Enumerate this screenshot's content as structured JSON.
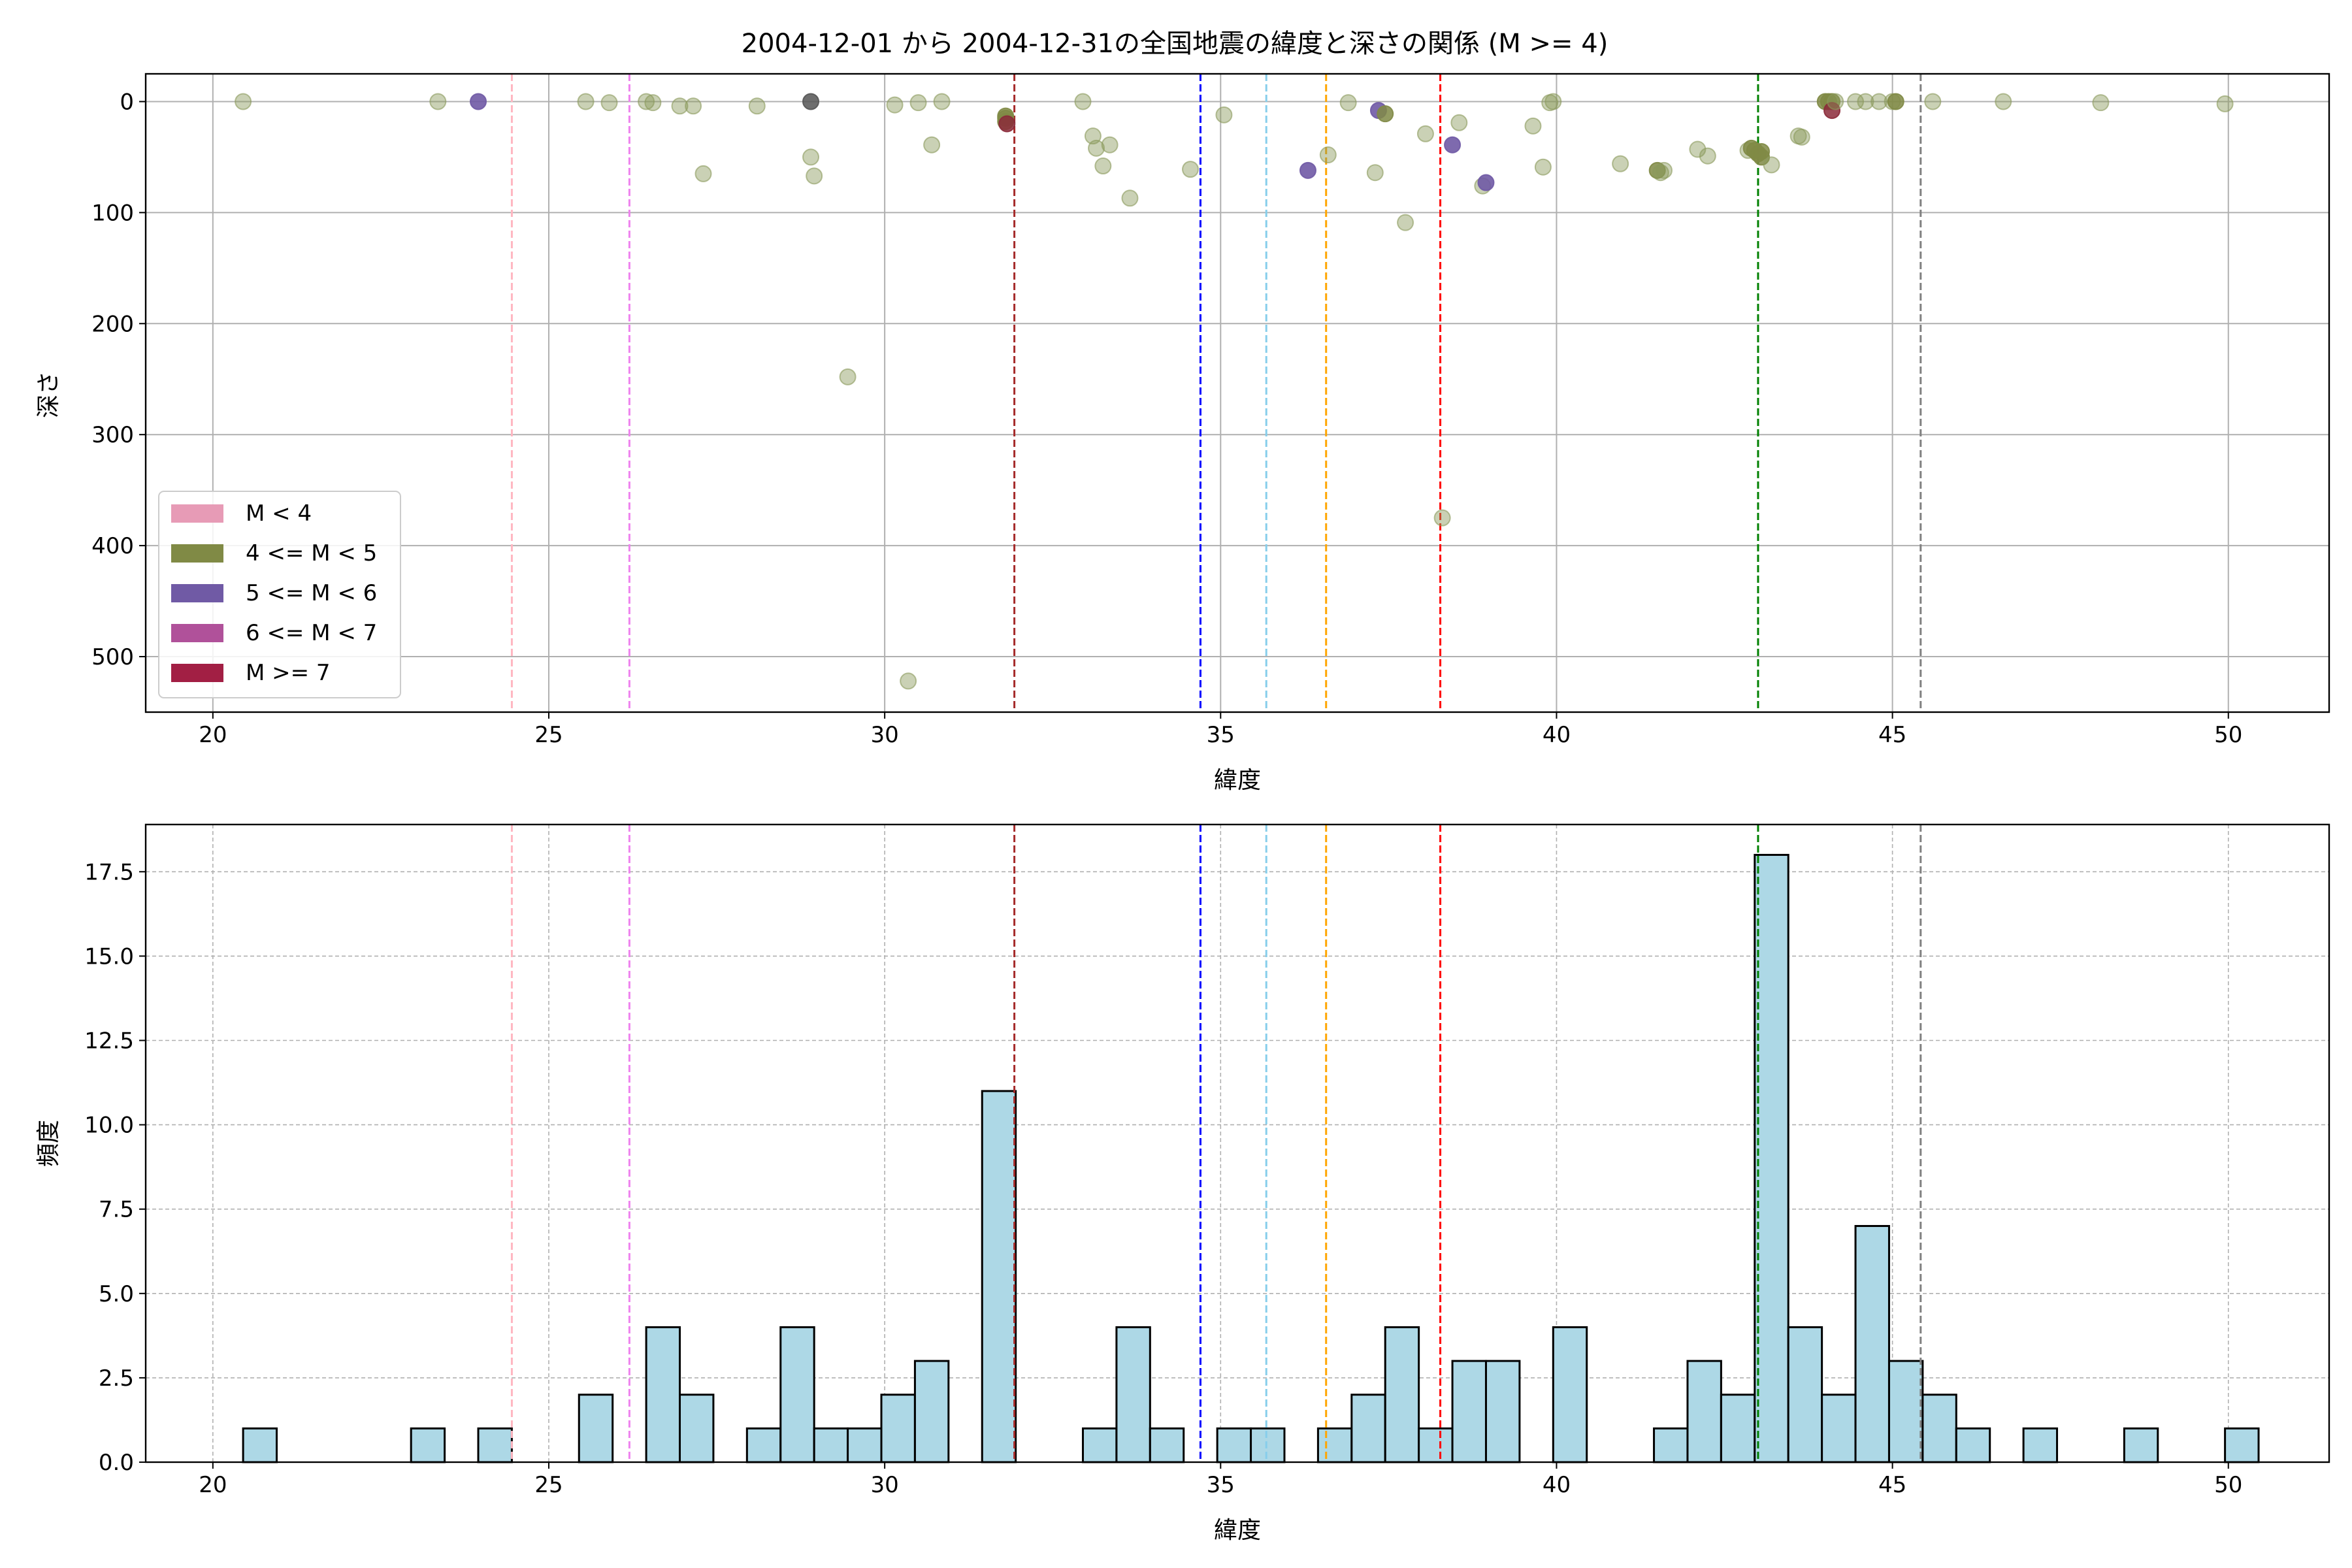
{
  "title": "2004-12-01 から 2004-12-31の全国地震の緯度と深さの関係 (M >= 4)",
  "colors": {
    "scatter_light": "#8a9a5b",
    "mag_4_5": "#808a45",
    "mag_5_6": "#705aa5",
    "mag_7": "#8b2a3a",
    "dark": "#555555",
    "hist_fill": "#add8e6",
    "grid": "#b0b0b0"
  },
  "chart_data": [
    {
      "type": "scatter",
      "xlabel": "緯度",
      "ylabel": "深さ",
      "xlim": [
        19,
        51.5
      ],
      "ylim": [
        550,
        -25
      ],
      "y_inverted": true,
      "xticks": [
        20,
        25,
        30,
        35,
        40,
        45,
        50
      ],
      "yticks": [
        0,
        100,
        200,
        300,
        400,
        500
      ],
      "grid": "solid",
      "legend_position": "lower-left",
      "legend": [
        {
          "label": "M < 4",
          "color": "#e79bb6"
        },
        {
          "label": "4 <= M < 5",
          "color": "#808a45"
        },
        {
          "label": "5 <= M < 6",
          "color": "#705aa5"
        },
        {
          "label": "6 <= M < 7",
          "color": "#b0519a"
        },
        {
          "label": "M >= 7",
          "color": "#a21f44"
        }
      ],
      "vlines": [
        {
          "x": 24.45,
          "color": "#ffb6c1"
        },
        {
          "x": 26.2,
          "color": "#ee82ee"
        },
        {
          "x": 31.93,
          "color": "#a52a2a"
        },
        {
          "x": 34.7,
          "color": "#0000ff"
        },
        {
          "x": 35.68,
          "color": "#87ceeb"
        },
        {
          "x": 36.57,
          "color": "#ffa500"
        },
        {
          "x": 38.27,
          "color": "#ff0000"
        },
        {
          "x": 43.0,
          "color": "#008000"
        },
        {
          "x": 45.42,
          "color": "#808080"
        }
      ],
      "points": [
        {
          "x": 20.45,
          "y": 0,
          "g": "light"
        },
        {
          "x": 23.35,
          "y": 0,
          "g": "light"
        },
        {
          "x": 23.95,
          "y": 0,
          "g": "m56"
        },
        {
          "x": 25.55,
          "y": 0,
          "g": "light"
        },
        {
          "x": 25.9,
          "y": 1,
          "g": "light"
        },
        {
          "x": 26.45,
          "y": 0,
          "g": "light"
        },
        {
          "x": 26.55,
          "y": 1,
          "g": "light"
        },
        {
          "x": 26.95,
          "y": 4,
          "g": "light"
        },
        {
          "x": 27.15,
          "y": 4,
          "g": "light"
        },
        {
          "x": 27.3,
          "y": 65,
          "g": "light"
        },
        {
          "x": 28.1,
          "y": 4,
          "g": "light"
        },
        {
          "x": 28.9,
          "y": 0,
          "g": "dark"
        },
        {
          "x": 28.9,
          "y": 50,
          "g": "light"
        },
        {
          "x": 28.95,
          "y": 67,
          "g": "light"
        },
        {
          "x": 29.45,
          "y": 248,
          "g": "light"
        },
        {
          "x": 30.15,
          "y": 3,
          "g": "light"
        },
        {
          "x": 30.35,
          "y": 522,
          "g": "light"
        },
        {
          "x": 30.5,
          "y": 1,
          "g": "light"
        },
        {
          "x": 30.7,
          "y": 39,
          "g": "light"
        },
        {
          "x": 30.85,
          "y": 0,
          "g": "light"
        },
        {
          "x": 31.8,
          "y": 13,
          "g": "m45"
        },
        {
          "x": 31.8,
          "y": 15,
          "g": "m45"
        },
        {
          "x": 31.8,
          "y": 18,
          "g": "m45"
        },
        {
          "x": 31.82,
          "y": 20,
          "g": "m7"
        },
        {
          "x": 32.95,
          "y": 0,
          "g": "light"
        },
        {
          "x": 33.1,
          "y": 31,
          "g": "light"
        },
        {
          "x": 33.15,
          "y": 42,
          "g": "light"
        },
        {
          "x": 33.25,
          "y": 58,
          "g": "light"
        },
        {
          "x": 33.35,
          "y": 39,
          "g": "light"
        },
        {
          "x": 33.65,
          "y": 87,
          "g": "light"
        },
        {
          "x": 34.55,
          "y": 61,
          "g": "light"
        },
        {
          "x": 35.05,
          "y": 12,
          "g": "light"
        },
        {
          "x": 36.3,
          "y": 62,
          "g": "m56"
        },
        {
          "x": 36.6,
          "y": 48,
          "g": "light"
        },
        {
          "x": 36.9,
          "y": 1,
          "g": "light"
        },
        {
          "x": 37.3,
          "y": 64,
          "g": "light"
        },
        {
          "x": 37.35,
          "y": 8,
          "g": "m56"
        },
        {
          "x": 37.45,
          "y": 11,
          "g": "m45"
        },
        {
          "x": 37.75,
          "y": 109,
          "g": "light"
        },
        {
          "x": 38.05,
          "y": 29,
          "g": "light"
        },
        {
          "x": 38.3,
          "y": 375,
          "g": "light"
        },
        {
          "x": 38.45,
          "y": 39,
          "g": "m56"
        },
        {
          "x": 38.55,
          "y": 19,
          "g": "light"
        },
        {
          "x": 38.9,
          "y": 76,
          "g": "light"
        },
        {
          "x": 38.95,
          "y": 73,
          "g": "m56"
        },
        {
          "x": 39.65,
          "y": 22,
          "g": "light"
        },
        {
          "x": 39.8,
          "y": 59,
          "g": "light"
        },
        {
          "x": 39.9,
          "y": 1,
          "g": "light"
        },
        {
          "x": 39.95,
          "y": 0,
          "g": "light"
        },
        {
          "x": 40.95,
          "y": 56,
          "g": "light"
        },
        {
          "x": 41.5,
          "y": 62,
          "g": "m45"
        },
        {
          "x": 41.55,
          "y": 64,
          "g": "light"
        },
        {
          "x": 41.6,
          "y": 62,
          "g": "light"
        },
        {
          "x": 42.1,
          "y": 43,
          "g": "light"
        },
        {
          "x": 42.25,
          "y": 49,
          "g": "light"
        },
        {
          "x": 42.85,
          "y": 44,
          "g": "light"
        },
        {
          "x": 42.9,
          "y": 42,
          "g": "m45"
        },
        {
          "x": 42.95,
          "y": 44,
          "g": "m45"
        },
        {
          "x": 43.0,
          "y": 47,
          "g": "m45"
        },
        {
          "x": 43.05,
          "y": 45,
          "g": "m45"
        },
        {
          "x": 43.05,
          "y": 50,
          "g": "m45"
        },
        {
          "x": 43.2,
          "y": 57,
          "g": "light"
        },
        {
          "x": 43.6,
          "y": 31,
          "g": "light"
        },
        {
          "x": 43.65,
          "y": 32,
          "g": "light"
        },
        {
          "x": 44.0,
          "y": 0,
          "g": "m45"
        },
        {
          "x": 44.05,
          "y": 0,
          "g": "m45"
        },
        {
          "x": 44.1,
          "y": 0,
          "g": "m45"
        },
        {
          "x": 44.1,
          "y": 8,
          "g": "m7"
        },
        {
          "x": 44.15,
          "y": 0,
          "g": "light"
        },
        {
          "x": 44.45,
          "y": 0,
          "g": "light"
        },
        {
          "x": 44.6,
          "y": 0,
          "g": "light"
        },
        {
          "x": 44.8,
          "y": 0,
          "g": "light"
        },
        {
          "x": 45.0,
          "y": 0,
          "g": "light"
        },
        {
          "x": 45.05,
          "y": 0,
          "g": "m45"
        },
        {
          "x": 45.6,
          "y": 0,
          "g": "light"
        },
        {
          "x": 46.65,
          "y": 0,
          "g": "light"
        },
        {
          "x": 48.1,
          "y": 1,
          "g": "light"
        },
        {
          "x": 49.95,
          "y": 2,
          "g": "light"
        }
      ]
    },
    {
      "type": "bar",
      "xlabel": "緯度",
      "ylabel": "頻度",
      "xlim": [
        19,
        51.5
      ],
      "ylim": [
        0,
        18.9
      ],
      "xticks": [
        20,
        25,
        30,
        35,
        40,
        45,
        50
      ],
      "yticks": [
        0,
        2.5,
        5,
        7.5,
        10,
        12.5,
        15,
        17.5
      ],
      "ytick_labels": [
        "0.0",
        "2.5",
        "5.0",
        "7.5",
        "10.0",
        "12.5",
        "15.0",
        "17.5"
      ],
      "grid": "dashed",
      "bin_start": 20.45,
      "bin_width": 0.5,
      "bins": [
        {
          "i": 0,
          "v": 1
        },
        {
          "i": 5,
          "v": 1
        },
        {
          "i": 7,
          "v": 1
        },
        {
          "i": 10,
          "v": 2
        },
        {
          "i": 12,
          "v": 4
        },
        {
          "i": 13,
          "v": 2
        },
        {
          "i": 15,
          "v": 1
        },
        {
          "i": 16,
          "v": 4
        },
        {
          "i": 17,
          "v": 1
        },
        {
          "i": 18,
          "v": 1
        },
        {
          "i": 19,
          "v": 2
        },
        {
          "i": 20,
          "v": 3
        },
        {
          "i": 22,
          "v": 11
        },
        {
          "i": 25,
          "v": 1
        },
        {
          "i": 26,
          "v": 4
        },
        {
          "i": 27,
          "v": 1
        },
        {
          "i": 29,
          "v": 1
        },
        {
          "i": 30,
          "v": 1
        },
        {
          "i": 32,
          "v": 1
        },
        {
          "i": 33,
          "v": 2
        },
        {
          "i": 34,
          "v": 4
        },
        {
          "i": 35,
          "v": 1
        },
        {
          "i": 36,
          "v": 3
        },
        {
          "i": 37,
          "v": 3
        },
        {
          "i": 39,
          "v": 4
        },
        {
          "i": 42,
          "v": 1
        },
        {
          "i": 43,
          "v": 3
        },
        {
          "i": 44,
          "v": 2
        },
        {
          "i": 45,
          "v": 18
        },
        {
          "i": 46,
          "v": 4
        },
        {
          "i": 47,
          "v": 2
        },
        {
          "i": 48,
          "v": 7
        },
        {
          "i": 49,
          "v": 3
        },
        {
          "i": 50,
          "v": 2
        },
        {
          "i": 51,
          "v": 1
        },
        {
          "i": 53,
          "v": 1
        },
        {
          "i": 56,
          "v": 1
        },
        {
          "i": 59,
          "v": 1
        }
      ],
      "vlines_same_as_top": true
    }
  ]
}
